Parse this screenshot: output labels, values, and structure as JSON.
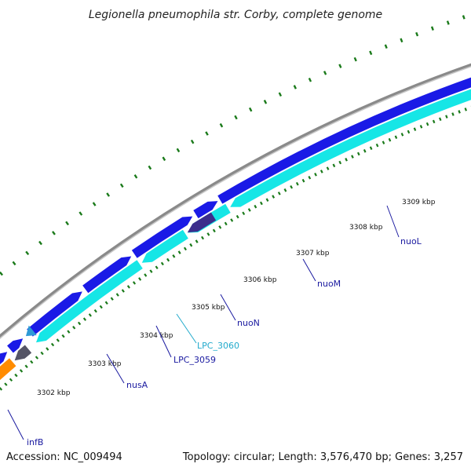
{
  "title": "Legionella pneumophila str. Corby, complete genome",
  "footer": {
    "accession": "Accession: NC_009494",
    "summary": "Topology: circular; Length: 3,576,470 bp; Genes: 3,257"
  },
  "colors": {
    "backbone": "#8a8a8a",
    "forward_cds": "#1a1ae6",
    "reverse_cds": "#16e6e6",
    "highlight_orange": "#ff8c00",
    "highlight_pink": "#f08080",
    "dark_gene": "#555566",
    "purple_gene": "#3c2d8c",
    "tick": "#1a7a1a",
    "label_blue": "#1a1aa0",
    "label_cyan": "#22aacc"
  },
  "kbp_labels": [
    "3302 kbp",
    "3303 kbp",
    "3304 kbp",
    "3305 kbp",
    "3306 kbp",
    "3307 kbp",
    "3308 kbp",
    "3309 kbp"
  ],
  "gene_labels": [
    {
      "name": "infB",
      "color": "label_blue"
    },
    {
      "name": "nusA",
      "color": "label_blue"
    },
    {
      "name": "LPC_3059",
      "color": "label_blue"
    },
    {
      "name": "LPC_3060",
      "color": "label_cyan"
    },
    {
      "name": "nuoN",
      "color": "label_blue"
    },
    {
      "name": "nuoM",
      "color": "label_blue"
    },
    {
      "name": "nuoL",
      "color": "label_blue"
    }
  ]
}
